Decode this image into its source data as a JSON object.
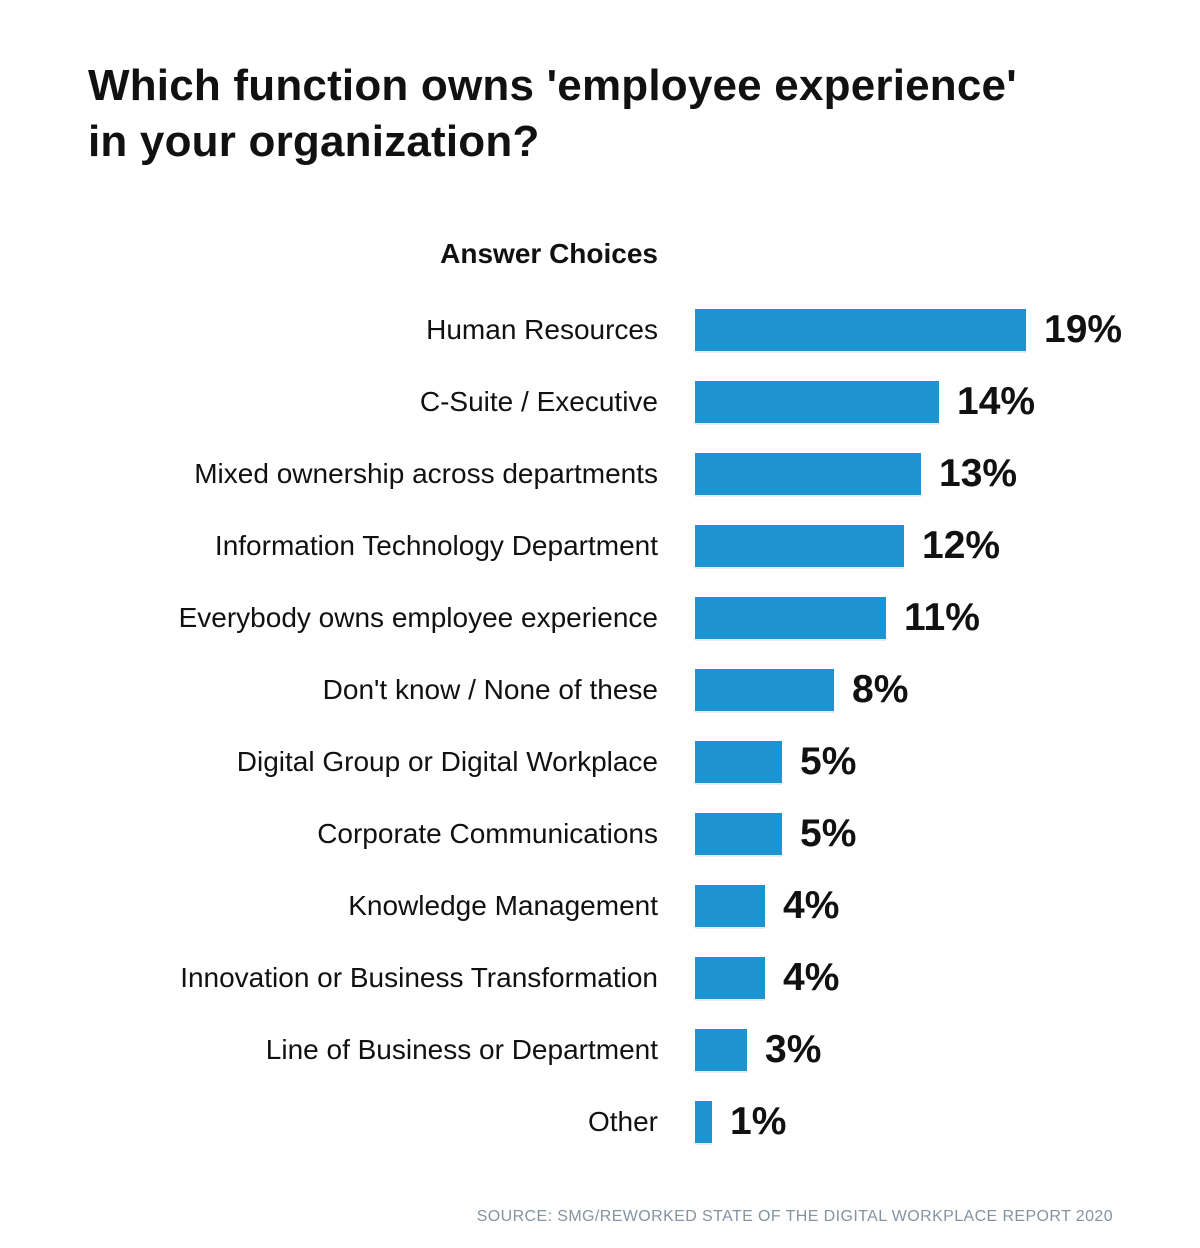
{
  "title": "Which function owns 'employee experience'\nin your organization?",
  "source": "SOURCE: SMG/REWORKED STATE OF THE DIGITAL WORKPLACE REPORT 2020",
  "colors": {
    "bar": "#1e93d1",
    "text": "#111111",
    "source_text": "#8593a1",
    "background": "#ffffff"
  },
  "chart_data": {
    "type": "bar",
    "orientation": "horizontal",
    "title": "Which function owns 'employee experience' in your organization?",
    "header": "Answer Choices",
    "categories": [
      "Human Resources",
      "C-Suite / Executive",
      "Mixed ownership across departments",
      "Information Technology Department",
      "Everybody owns employee experience",
      "Don't know / None of these",
      "Digital Group or Digital Workplace",
      "Corporate Communications",
      "Knowledge Management",
      "Innovation or Business Transformation",
      "Line of Business or Department",
      "Other"
    ],
    "values": [
      19,
      14,
      13,
      12,
      11,
      8,
      5,
      5,
      4,
      4,
      3,
      1
    ],
    "unit": "%",
    "xlim": [
      0,
      20
    ],
    "grid": false,
    "legend": "none",
    "value_labels": "outside-end",
    "source": "SOURCE: SMG/REWORKED STATE OF THE DIGITAL WORKPLACE REPORT 2020"
  }
}
